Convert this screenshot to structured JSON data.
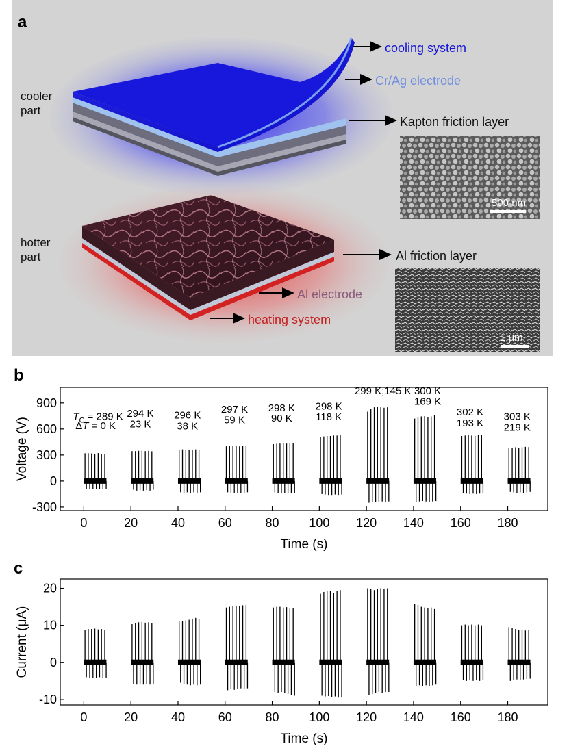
{
  "panel_a": {
    "letter": "a",
    "cooler_part": [
      "cooler",
      "part"
    ],
    "hotter_part": [
      "hotter",
      "part"
    ],
    "callouts": {
      "cooling": "cooling system",
      "crag": "Cr/Ag electrode",
      "kapton": "Kapton friction layer",
      "al_layer": "Al friction layer",
      "al_electrode": "Al electrode",
      "heating": "heating system"
    },
    "scalebar_top": "500 nm",
    "scalebar_bottom": "1 μm",
    "colors": {
      "background": "#d3d3d3",
      "cooling": "#1515d8",
      "crag": "#6f8ee0",
      "al_electrode": "#8a5a7a",
      "heating": "#c41e1e"
    }
  },
  "chart_data": [
    {
      "letter": "b",
      "type": "line",
      "xlabel": "Time (s)",
      "ylabel": "Voltage (V)",
      "xlim": [
        -10,
        197
      ],
      "ylim": [
        -340,
        1080
      ],
      "xticks": [
        0,
        20,
        40,
        60,
        80,
        100,
        120,
        140,
        160,
        180
      ],
      "yticks": [
        -300,
        0,
        300,
        600,
        900
      ],
      "bursts": [
        {
          "start": 0,
          "peaks": [
            320,
            320,
            318,
            315,
            322,
            315,
            310
          ],
          "troughs": [
            -90,
            -95,
            -90,
            -95,
            -90,
            -95,
            -90
          ]
        },
        {
          "start": 20,
          "peaks": [
            345,
            345,
            348,
            350,
            345,
            348,
            343
          ],
          "troughs": [
            -100,
            -110,
            -105,
            -110,
            -105,
            -110,
            -100
          ]
        },
        {
          "start": 40,
          "peaks": [
            360,
            365,
            362,
            360,
            362,
            365,
            360
          ],
          "troughs": [
            -130,
            -135,
            -130,
            -135,
            -130,
            -135,
            -130
          ]
        },
        {
          "start": 60,
          "peaks": [
            400,
            405,
            402,
            405,
            400,
            405,
            402
          ],
          "troughs": [
            -130,
            -140,
            -135,
            -140,
            -135,
            -140,
            -130
          ]
        },
        {
          "start": 80,
          "peaks": [
            425,
            430,
            432,
            435,
            432,
            435,
            440
          ],
          "troughs": [
            -130,
            -135,
            -135,
            -140,
            -135,
            -140,
            -135
          ]
        },
        {
          "start": 100,
          "peaks": [
            510,
            515,
            520,
            520,
            525,
            525,
            530
          ],
          "troughs": [
            -150,
            -155,
            -160,
            -160,
            -155,
            -160,
            -155
          ]
        },
        {
          "start": 120,
          "peaks": [
            800,
            830,
            850,
            855,
            850,
            845,
            850
          ],
          "troughs": [
            -250,
            -240,
            -245,
            -240,
            -235,
            -240,
            -235
          ]
        },
        {
          "start": 140,
          "peaks": [
            720,
            740,
            745,
            748,
            735,
            745,
            760
          ],
          "troughs": [
            -240,
            -235,
            -230,
            -235,
            -240,
            -235,
            -230
          ]
        },
        {
          "start": 160,
          "peaks": [
            520,
            525,
            530,
            525,
            520,
            530,
            535
          ],
          "troughs": [
            -140,
            -145,
            -150,
            -145,
            -150,
            -145,
            -140
          ]
        },
        {
          "start": 180,
          "peaks": [
            380,
            385,
            390,
            385,
            390,
            395,
            392
          ],
          "troughs": [
            -125,
            -130,
            -135,
            -130,
            -135,
            -130,
            -125
          ]
        }
      ],
      "annotations": [
        {
          "x": 6,
          "y": 705,
          "text": "T_C = 289 K",
          "kind": "tc"
        },
        {
          "x": 5,
          "y": 600,
          "text": "ΔT = 0 K",
          "kind": "dt"
        },
        {
          "x": 24,
          "y": 740,
          "text": "294 K"
        },
        {
          "x": 24,
          "y": 620,
          "text": "23 K"
        },
        {
          "x": 44,
          "y": 720,
          "text": "296 K"
        },
        {
          "x": 44,
          "y": 595,
          "text": "38 K"
        },
        {
          "x": 64,
          "y": 790,
          "text": "297 K"
        },
        {
          "x": 64,
          "y": 665,
          "text": "59 K"
        },
        {
          "x": 84,
          "y": 805,
          "text": "298 K"
        },
        {
          "x": 84,
          "y": 685,
          "text": "90 K"
        },
        {
          "x": 104,
          "y": 825,
          "text": "298 K"
        },
        {
          "x": 104,
          "y": 700,
          "text": "118 K"
        },
        {
          "x": 127,
          "y": 1000,
          "text": "299 K;145 K"
        },
        {
          "x": 146,
          "y": 1000,
          "text": "300 K"
        },
        {
          "x": 146,
          "y": 880,
          "text": "169 K"
        },
        {
          "x": 164,
          "y": 755,
          "text": "302 K"
        },
        {
          "x": 164,
          "y": 630,
          "text": "193 K"
        },
        {
          "x": 184,
          "y": 705,
          "text": "303 K"
        },
        {
          "x": 184,
          "y": 580,
          "text": "219 K"
        }
      ]
    },
    {
      "letter": "c",
      "type": "line",
      "xlabel": "Time (s)",
      "ylabel": "Current (μA)",
      "xlim": [
        -10,
        197
      ],
      "ylim": [
        -11.5,
        22.5
      ],
      "xticks": [
        0,
        20,
        40,
        60,
        80,
        100,
        120,
        140,
        160,
        180
      ],
      "yticks": [
        -10,
        0,
        10,
        20
      ],
      "bursts": [
        {
          "start": 0,
          "peaks": [
            8.8,
            9.0,
            9.0,
            9.1,
            8.9,
            9.0,
            8.7
          ],
          "troughs": [
            -4.0,
            -4.2,
            -4.1,
            -4.2,
            -4.0,
            -4.2,
            -4.1
          ]
        },
        {
          "start": 20,
          "peaks": [
            10.3,
            10.6,
            10.8,
            10.9,
            10.7,
            10.8,
            10.6
          ],
          "troughs": [
            -5.8,
            -6.0,
            -5.9,
            -6.0,
            -5.9,
            -6.0,
            -5.8
          ]
        },
        {
          "start": 40,
          "peaks": [
            11.0,
            11.2,
            11.3,
            11.5,
            11.8,
            12.0,
            11.6
          ],
          "troughs": [
            -5.5,
            -5.8,
            -6.0,
            -6.2,
            -6.0,
            -6.2,
            -6.0
          ]
        },
        {
          "start": 60,
          "peaks": [
            14.8,
            15.0,
            15.2,
            15.3,
            15.2,
            15.4,
            15.5
          ],
          "troughs": [
            -7.5,
            -7.2,
            -7.4,
            -7.2,
            -7.0,
            -7.2,
            -7.0
          ]
        },
        {
          "start": 80,
          "peaks": [
            14.8,
            15.0,
            15.0,
            14.8,
            14.9,
            14.5,
            14.6
          ],
          "troughs": [
            -8.0,
            -8.2,
            -8.0,
            -8.2,
            -8.5,
            -8.8,
            -9.0
          ]
        },
        {
          "start": 100,
          "peaks": [
            18.5,
            19.0,
            19.2,
            19.3,
            18.8,
            19.2,
            19.5
          ],
          "troughs": [
            -9.0,
            -9.2,
            -9.1,
            -9.3,
            -9.2,
            -9.5,
            -9.5
          ]
        },
        {
          "start": 120,
          "peaks": [
            20.0,
            19.8,
            19.5,
            19.8,
            20.0,
            19.8,
            20.0
          ],
          "troughs": [
            -8.8,
            -8.5,
            -8.2,
            -8.0,
            -8.2,
            -8.0,
            -8.0
          ]
        },
        {
          "start": 140,
          "peaks": [
            15.8,
            15.5,
            15.0,
            14.8,
            14.6,
            14.8,
            14.4
          ],
          "troughs": [
            -6.5,
            -6.2,
            -6.4,
            -6.2,
            -6.5,
            -6.2,
            -6.0
          ]
        },
        {
          "start": 160,
          "peaks": [
            10.0,
            10.2,
            10.0,
            10.2,
            10.0,
            10.2,
            10.0
          ],
          "troughs": [
            -4.8,
            -5.0,
            -4.8,
            -5.0,
            -4.8,
            -5.0,
            -4.8
          ]
        },
        {
          "start": 180,
          "peaks": [
            9.5,
            9.2,
            9.0,
            8.8,
            8.8,
            8.6,
            8.8
          ],
          "troughs": [
            -5.0,
            -4.8,
            -4.6,
            -4.8,
            -4.6,
            -4.5,
            -4.4
          ]
        }
      ]
    }
  ]
}
